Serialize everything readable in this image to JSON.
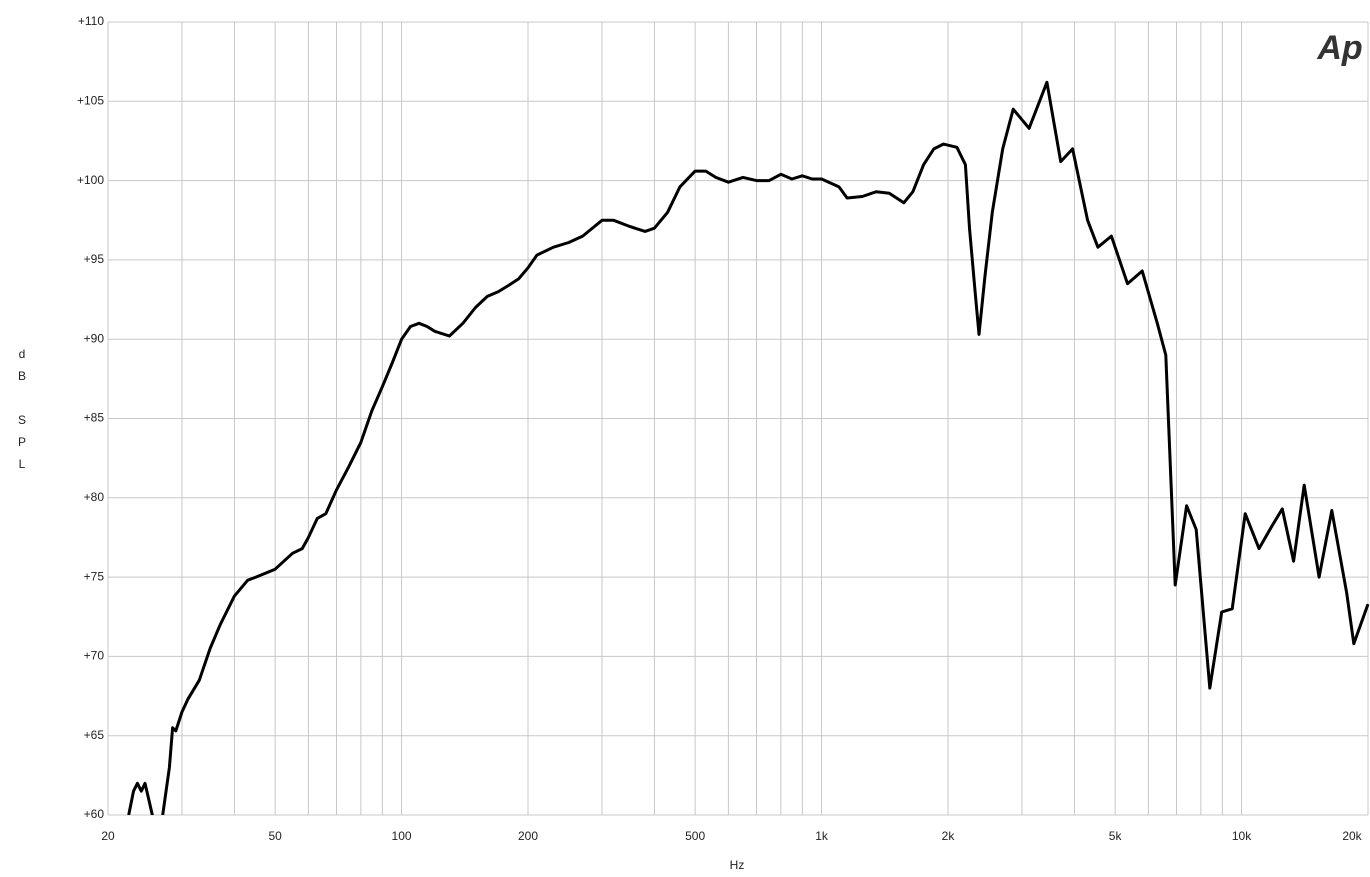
{
  "chart_data": {
    "type": "line",
    "xlabel": "Hz",
    "ylabel": "dB SPL",
    "logo": "Ap",
    "xscale": "log",
    "grid": true,
    "xlim": [
      20,
      20000
    ],
    "ylim": [
      60,
      110
    ],
    "xticks": [
      20,
      50,
      100,
      200,
      500,
      {
        "value": 1000,
        "label": "1k"
      },
      {
        "value": 2000,
        "label": "2k"
      },
      {
        "value": 5000,
        "label": "5k"
      },
      {
        "value": 10000,
        "label": "10k"
      },
      {
        "value": 20000,
        "label": "20k"
      }
    ],
    "xminor": [
      30,
      40,
      60,
      70,
      80,
      90,
      300,
      400,
      600,
      700,
      800,
      900,
      3000,
      4000,
      6000,
      7000,
      8000,
      9000
    ],
    "yticks": [
      {
        "value": 60,
        "label": "+60"
      },
      {
        "value": 65,
        "label": "+65"
      },
      {
        "value": 70,
        "label": "+70"
      },
      {
        "value": 75,
        "label": "+75"
      },
      {
        "value": 80,
        "label": "+80"
      },
      {
        "value": 85,
        "label": "+85"
      },
      {
        "value": 90,
        "label": "+90"
      },
      {
        "value": 95,
        "label": "+95"
      },
      {
        "value": 100,
        "label": "+100"
      },
      {
        "value": 105,
        "label": "+105"
      },
      {
        "value": 110,
        "label": "+110"
      }
    ],
    "x": [
      22.4,
      23,
      23.5,
      24,
      24.5,
      25,
      25.5,
      26,
      27,
      28,
      28.5,
      29,
      30,
      31,
      33,
      35,
      37,
      40,
      43,
      45,
      50,
      55,
      58,
      60,
      63,
      66,
      70,
      75,
      80,
      85,
      90,
      95,
      100,
      105,
      110,
      115,
      120,
      130,
      140,
      150,
      160,
      170,
      180,
      190,
      200,
      210,
      230,
      250,
      270,
      300,
      320,
      350,
      380,
      400,
      430,
      460,
      500,
      530,
      560,
      600,
      650,
      700,
      750,
      800,
      850,
      900,
      950,
      1000,
      1100,
      1150,
      1250,
      1350,
      1450,
      1570,
      1650,
      1750,
      1850,
      1950,
      2100,
      2200,
      2250,
      2320,
      2370,
      2450,
      2550,
      2700,
      2860,
      3120,
      3440,
      3710,
      3960,
      4300,
      4550,
      4900,
      5350,
      5800,
      6300,
      6600,
      6950,
      7400,
      7800,
      8400,
      8970,
      9500,
      10200,
      11000,
      11800,
      12500,
      13300,
      14100,
      15300,
      16400,
      17800,
      18500,
      20000
    ],
    "series": [
      {
        "name": "SPL",
        "color": "#000000",
        "values": [
          60,
          61.5,
          62,
          61.5,
          62,
          61,
          60,
          58.5,
          60,
          63,
          65.5,
          65.3,
          66.5,
          67.3,
          68.5,
          70.5,
          72,
          73.8,
          74.8,
          75,
          75.5,
          76.5,
          76.8,
          77.5,
          78.7,
          79,
          80.5,
          82,
          83.5,
          85.5,
          87,
          88.5,
          90,
          90.8,
          91,
          90.8,
          90.5,
          90.2,
          91,
          92,
          92.7,
          93,
          93.4,
          93.8,
          94.5,
          95.3,
          95.8,
          96.1,
          96.5,
          97.5,
          97.5,
          97.1,
          96.8,
          97,
          98,
          99.6,
          100.6,
          100.6,
          100.2,
          99.9,
          100.2,
          100,
          100,
          100.4,
          100.1,
          100.3,
          100.1,
          100.1,
          99.6,
          98.9,
          99,
          99.3,
          99.2,
          98.6,
          99.3,
          101,
          102,
          102.3,
          102.1,
          101,
          97,
          93,
          90.3,
          94,
          98,
          102,
          104.5,
          103.3,
          106.2,
          101.2,
          102,
          97.5,
          95.8,
          96.5,
          93.5,
          94.3,
          91,
          89,
          74.5,
          79.5,
          78,
          68,
          72.8,
          73,
          79,
          76.8,
          78.2,
          79.3,
          76,
          80.8,
          75,
          79.2,
          74,
          70.8,
          73.3
        ]
      }
    ]
  }
}
